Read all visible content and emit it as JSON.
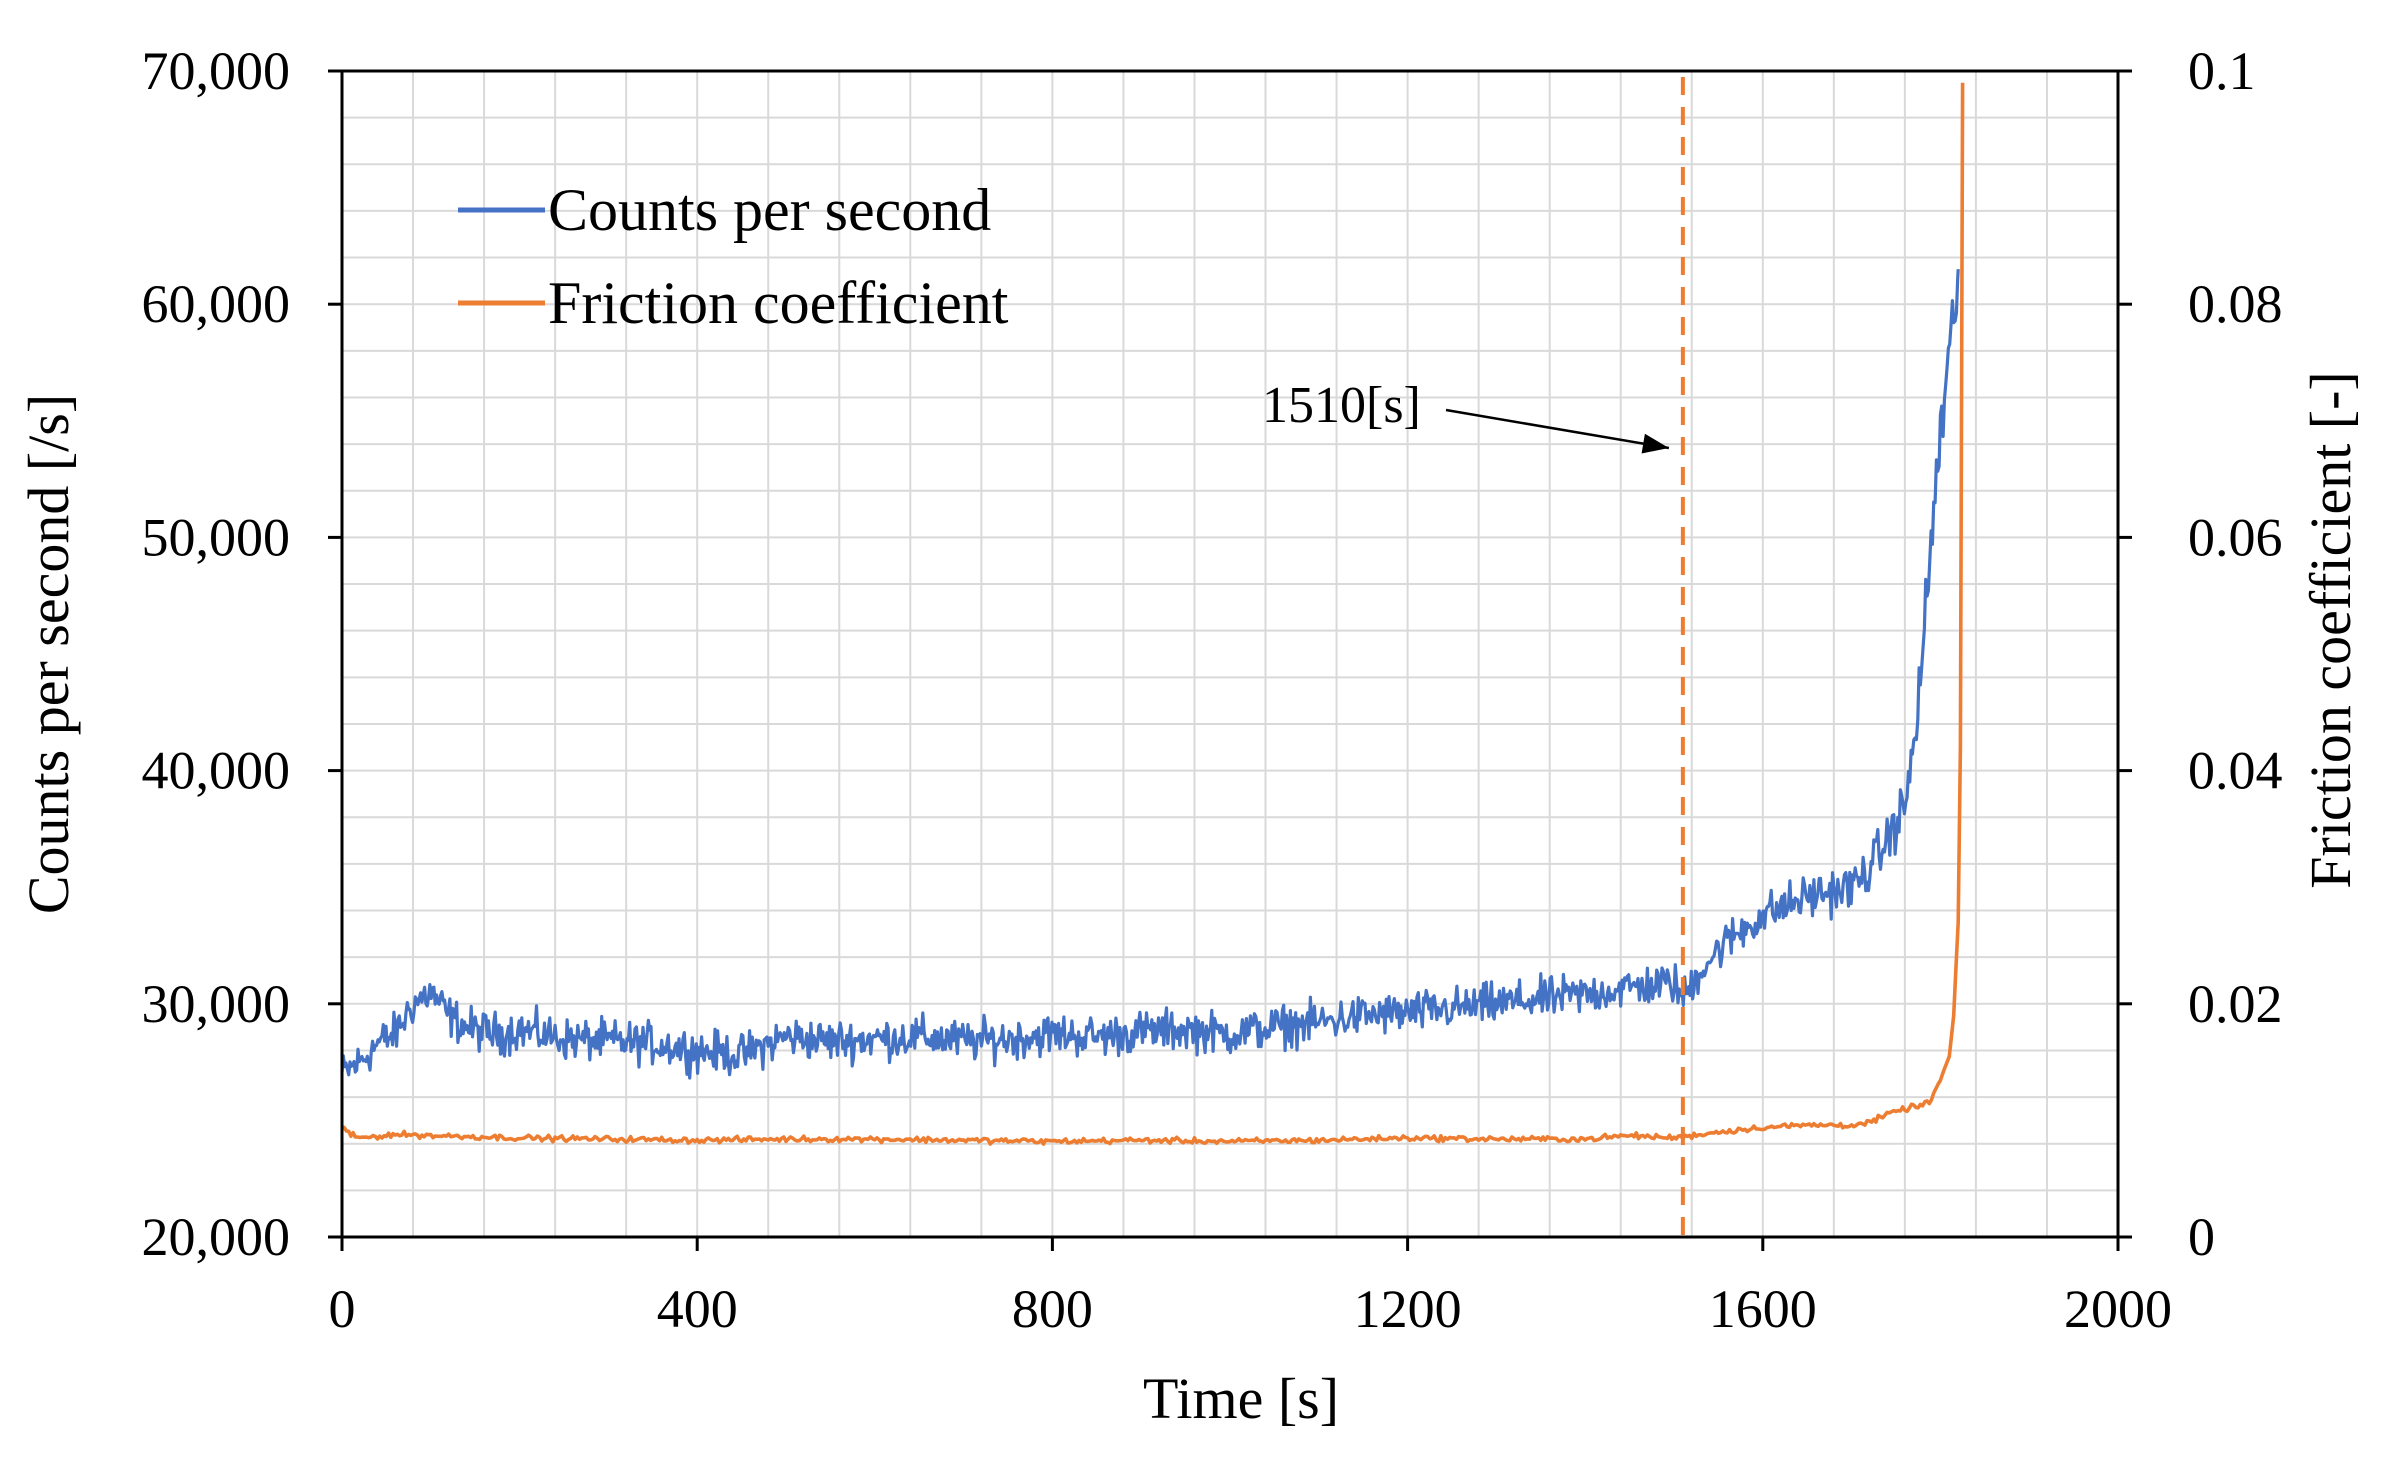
{
  "chart_data": {
    "type": "line",
    "title": "",
    "xlabel": "Time [s]",
    "ylabel": "Counts per second  [/s]",
    "y2label": "Friction coefficient  [-]",
    "xlim": [
      0,
      2000
    ],
    "ylim": [
      20000,
      70000
    ],
    "y2lim": [
      0,
      0.1
    ],
    "x_ticks": [
      0,
      400,
      800,
      1200,
      1600,
      2000
    ],
    "x_tick_labels": [
      "0",
      "400",
      "800",
      "1200",
      "1600",
      "2000"
    ],
    "y_ticks": [
      20000,
      30000,
      40000,
      50000,
      60000,
      70000
    ],
    "y_tick_labels": [
      "20,000",
      "30,000",
      "40,000",
      "50,000",
      "60,000",
      "70,000"
    ],
    "y2_ticks": [
      0,
      0.02,
      0.04,
      0.06,
      0.08,
      0.1
    ],
    "y2_tick_labels": [
      "0",
      "0.02",
      "0.04",
      "0.06",
      "0.08",
      "0.1"
    ],
    "grid": true,
    "legend_position": "top-left",
    "series": [
      {
        "name": "Counts per second",
        "axis": "left",
        "color": "#4472C4",
        "x": [
          0,
          20,
          40,
          60,
          80,
          100,
          120,
          140,
          160,
          180,
          200,
          250,
          300,
          350,
          400,
          450,
          500,
          550,
          600,
          650,
          700,
          750,
          800,
          850,
          900,
          950,
          1000,
          1050,
          1100,
          1150,
          1200,
          1250,
          1300,
          1350,
          1400,
          1450,
          1500,
          1510,
          1530,
          1560,
          1600,
          1650,
          1700,
          1720,
          1740,
          1760,
          1770,
          1780,
          1790,
          1800,
          1810,
          1820
        ],
        "values": [
          27000,
          27500,
          28300,
          28700,
          30000,
          30500,
          29500,
          29000,
          28800,
          28700,
          28900,
          28500,
          28400,
          28300,
          28000,
          27800,
          28600,
          28400,
          28500,
          28600,
          28400,
          28500,
          28700,
          28600,
          28800,
          28900,
          28700,
          29000,
          29200,
          29500,
          29600,
          29800,
          30000,
          30200,
          30400,
          30700,
          30900,
          30200,
          31500,
          32700,
          33800,
          34600,
          35000,
          35800,
          37000,
          38500,
          41000,
          45000,
          50000,
          54500,
          57500,
          61500
        ]
      },
      {
        "name": "Friction coefficient",
        "axis": "right",
        "color": "#ED7D31",
        "x": [
          0,
          10,
          20,
          60,
          100,
          200,
          300,
          400,
          500,
          600,
          700,
          800,
          900,
          1000,
          1100,
          1200,
          1300,
          1400,
          1450,
          1500,
          1550,
          1600,
          1650,
          1700,
          1720,
          1740,
          1760,
          1780,
          1790,
          1800,
          1810,
          1815,
          1820,
          1823,
          1825
        ],
        "values": [
          0.0095,
          0.0087,
          0.0085,
          0.0088,
          0.0087,
          0.0085,
          0.0084,
          0.0083,
          0.0084,
          0.0084,
          0.0083,
          0.0082,
          0.0083,
          0.0082,
          0.0083,
          0.0085,
          0.0084,
          0.0084,
          0.0087,
          0.0085,
          0.009,
          0.0094,
          0.0096,
          0.0096,
          0.0098,
          0.0105,
          0.011,
          0.0113,
          0.0118,
          0.0135,
          0.0155,
          0.019,
          0.027,
          0.045,
          0.099
        ]
      }
    ],
    "annotations": [
      {
        "type": "vline",
        "x": 1510,
        "style": "dashed",
        "color": "#ED7D31",
        "text": "1510[s]"
      }
    ]
  }
}
